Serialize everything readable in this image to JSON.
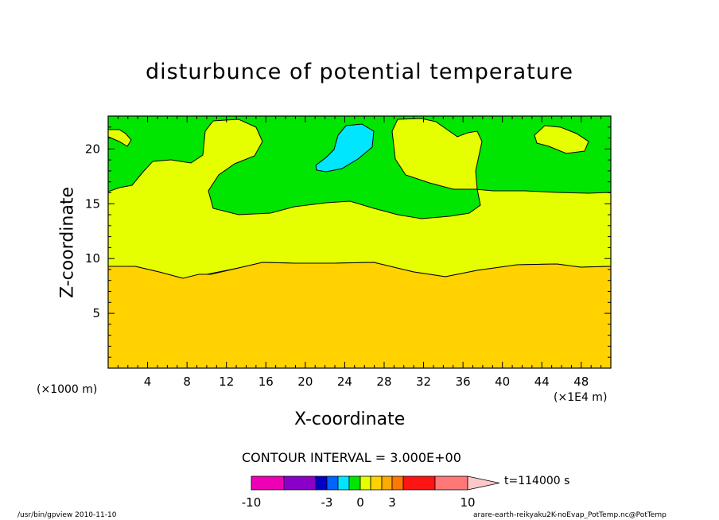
{
  "chart_data": {
    "type": "contour",
    "title": "disturbunce of potential temperature",
    "xlabel": "X-coordinate",
    "ylabel": "Z-coordinate",
    "x_unit_left": "(×1000 m)",
    "x_unit_right": "(×1E4 m)",
    "xlim": [
      0,
      51
    ],
    "ylim": [
      0,
      23
    ],
    "x_ticks": [
      4,
      8,
      12,
      16,
      20,
      24,
      28,
      32,
      36,
      40,
      44,
      48
    ],
    "y_ticks": [
      5,
      10,
      15,
      20
    ],
    "contour_interval_text": "CONTOUR INTERVAL = 3.000E+00",
    "time_text": "t=114000 s",
    "colorbar": {
      "colors": [
        "#ee00b4",
        "#8a00c8",
        "#0000c8",
        "#0064ff",
        "#00e6ff",
        "#00e600",
        "#e6ff00",
        "#ffd200",
        "#ffaa00",
        "#ff7800",
        "#ff1414",
        "#ff7878",
        "#ffc8c8"
      ],
      "tick_labels": [
        "-10",
        "-3",
        "0",
        "3",
        "10"
      ],
      "tick_values": [
        -10,
        -3,
        0,
        3,
        10
      ]
    },
    "regions": [
      {
        "name": "orange",
        "color": "#ffd200",
        "z_from": 0,
        "z_to": 9.5
      },
      {
        "name": "yellow",
        "color": "#e6ff00",
        "z_from": 9.5,
        "z_to": 16
      },
      {
        "name": "green",
        "color": "#00e600",
        "z_from": 16,
        "z_to": 23
      },
      {
        "name": "cyan",
        "color": "#00e6ff",
        "x_center": 25.5,
        "z_center": 20.5
      }
    ]
  },
  "footer": {
    "left": "/usr/bin/gpview   2010-11-10",
    "right": "arare-earth-reikyaku2K-noEvap_PotTemp.nc@PotTemp"
  }
}
